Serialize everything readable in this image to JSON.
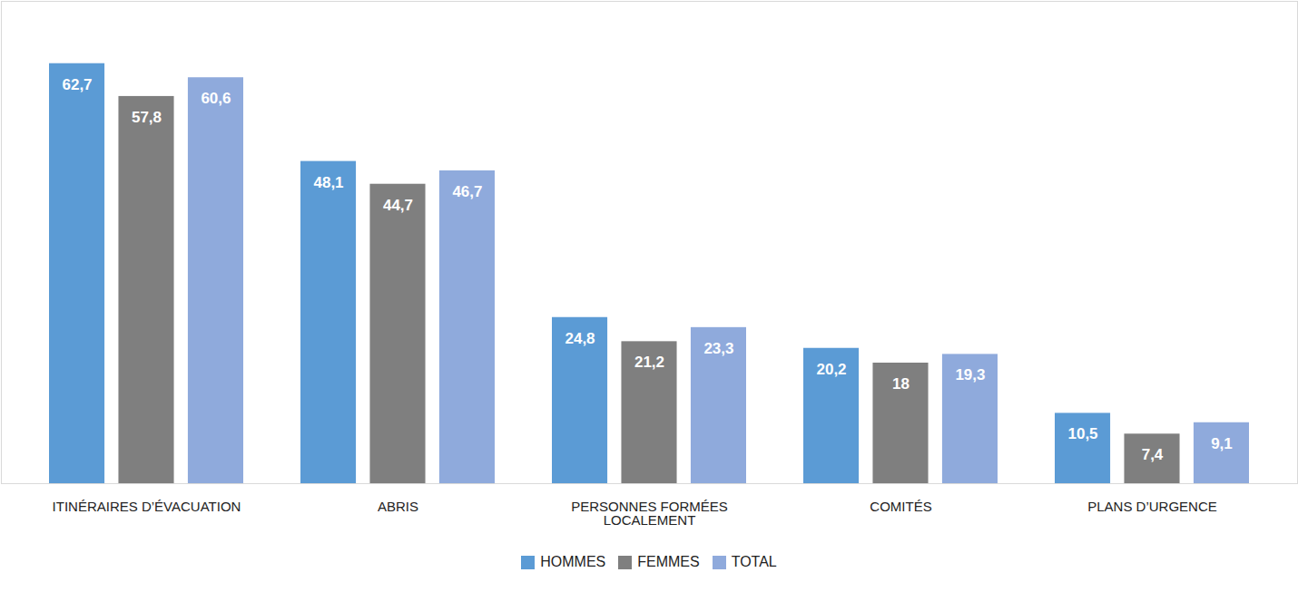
{
  "chart_data": {
    "type": "bar",
    "categories": [
      "ITINÉRAIRES D’ÉVACUATION",
      "ABRIS",
      "PERSONNES FORMÉES\nLOCALEMENT",
      "COMITÉS",
      "PLANS D’URGENCE"
    ],
    "series": [
      {
        "name": "HOMMES",
        "color": "#5b9bd5",
        "values": [
          62.7,
          48.1,
          24.8,
          20.2,
          10.5
        ],
        "value_labels": [
          "62,7",
          "48,1",
          "24,8",
          "20,2",
          "10,5"
        ]
      },
      {
        "name": "FEMMES",
        "color": "#7f7f7f",
        "values": [
          57.8,
          44.7,
          21.2,
          18,
          7.4
        ],
        "value_labels": [
          "57,8",
          "44,7",
          "21,2",
          "18",
          "7,4"
        ]
      },
      {
        "name": "TOTAL",
        "color": "#8faadc",
        "values": [
          60.6,
          46.7,
          23.3,
          19.3,
          9.1
        ],
        "value_labels": [
          "60,6",
          "46,7",
          "23,3",
          "19,3",
          "9,1"
        ]
      }
    ],
    "ylim": [
      0,
      72
    ],
    "grid": false,
    "legend": "bottom",
    "data_labels": true,
    "tick_labels": "x"
  }
}
